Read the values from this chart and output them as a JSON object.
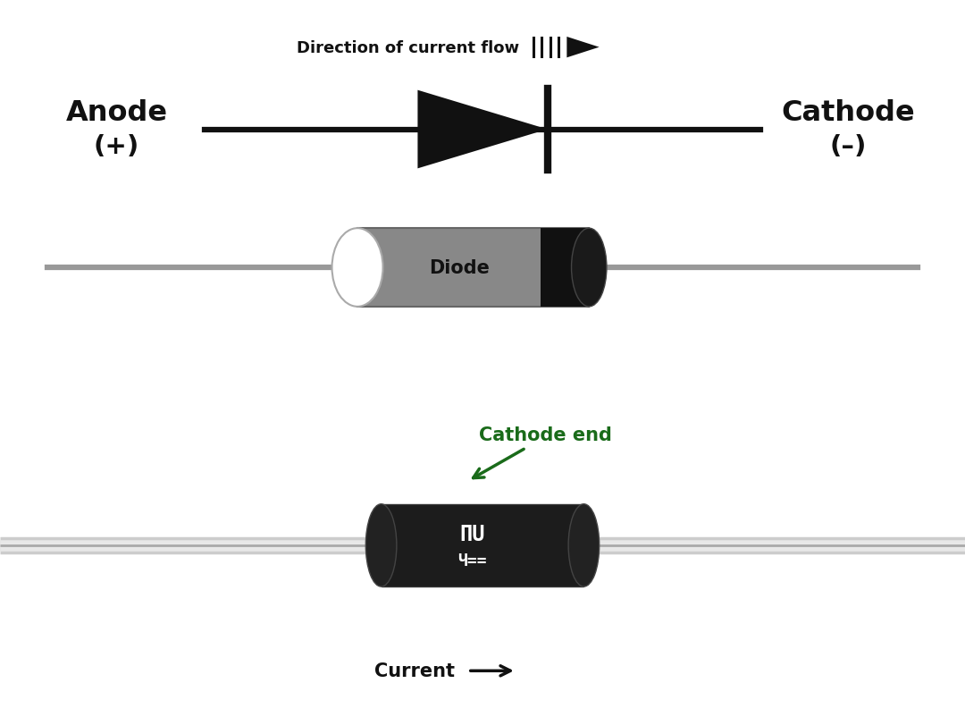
{
  "bg_top": "#ebebeb",
  "bg_bottom": "#ffffff",
  "anode_label": "Anode",
  "anode_sub": "(+)",
  "cathode_label": "Cathode",
  "cathode_sub": "(–)",
  "direction_text": "Direction of current flow",
  "diode_label": "Diode",
  "cathode_end_text": "Cathode end",
  "current_text": "Current",
  "wire_color": "#999999",
  "symbol_color": "#111111",
  "diode_body_color": "#888888",
  "diode_band_color": "#111111",
  "green_arrow_color": "#1a6b1a",
  "photo_wire_color": "#c8c8c8"
}
